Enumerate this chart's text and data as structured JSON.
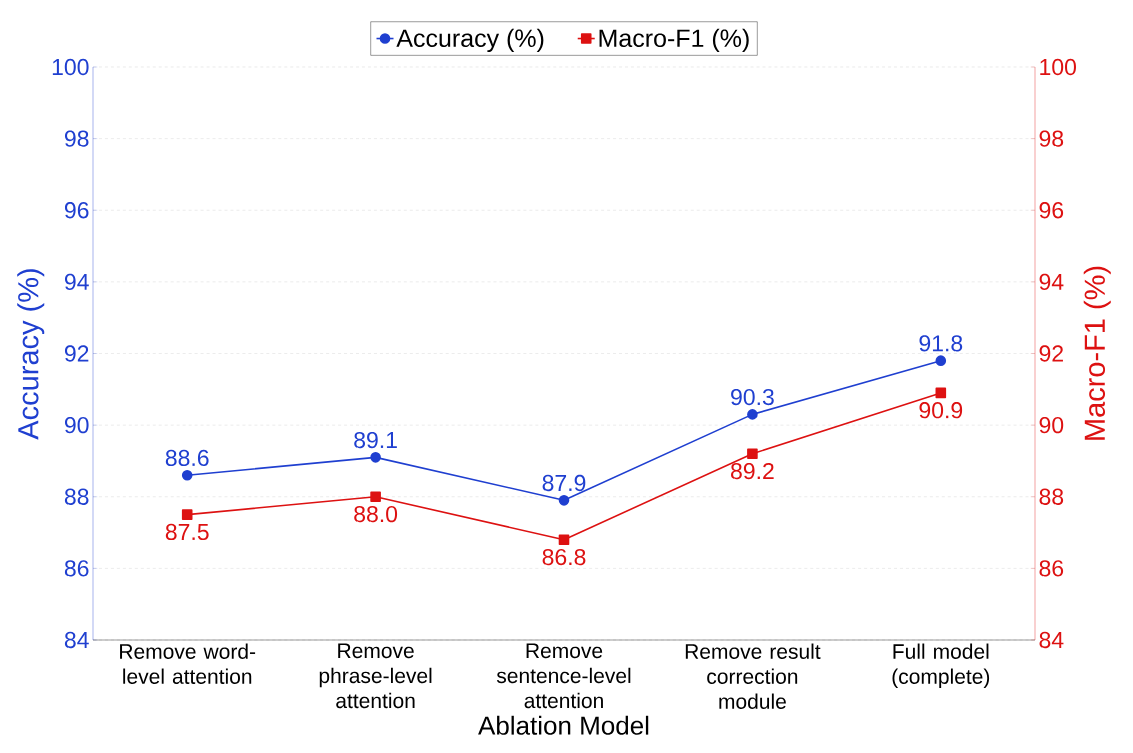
{
  "chart_data": {
    "type": "line",
    "xlabel": "Ablation Model",
    "ylabel": "Accuracy (%)",
    "y2label": "Macro-F1 (%)",
    "categories": [
      "Remove word-level attention",
      "Remove phrase-level attention",
      "Remove sentence-level attention",
      "Remove result correction module",
      "Full model (complete)"
    ],
    "series": [
      {
        "name": "Accuracy (%)",
        "color": "#1f3fd0",
        "values": [
          88.6,
          89.1,
          87.9,
          90.3,
          91.8
        ],
        "value_labels": [
          "88.6",
          "89.1",
          "87.9",
          "90.3",
          "91.8"
        ],
        "marker": "circle",
        "axis": "y"
      },
      {
        "name": "Macro-F1 (%)",
        "color": "#dd1111",
        "values": [
          87.5,
          88.0,
          86.8,
          89.2,
          90.9
        ],
        "value_labels": [
          "87.5",
          "88.0",
          "86.8",
          "89.2",
          "90.9"
        ],
        "marker": "square",
        "axis": "y2"
      }
    ],
    "ylim": [
      84,
      100
    ],
    "yticks": [
      84,
      86,
      88,
      90,
      92,
      94,
      96,
      98,
      100
    ],
    "y2lim": [
      84,
      100
    ],
    "y2ticks": [
      84,
      86,
      88,
      90,
      92,
      94,
      96,
      98,
      100
    ],
    "grid": "y",
    "legend": "top",
    "line_style": "solid"
  }
}
